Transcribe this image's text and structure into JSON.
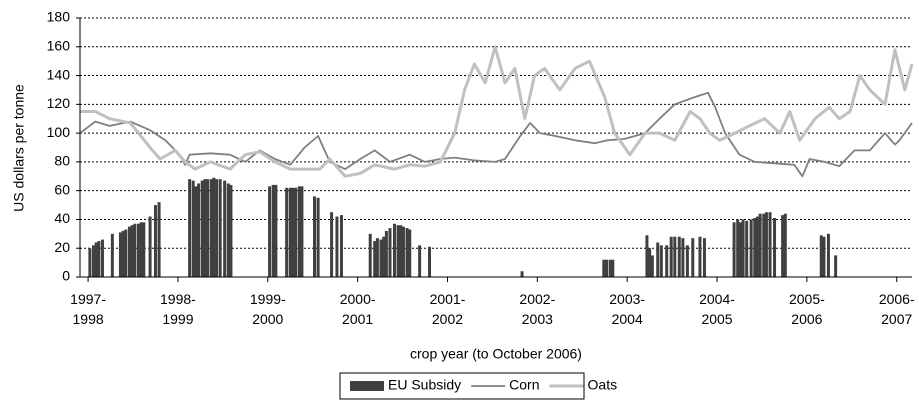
{
  "chart_data": {
    "type": "combo",
    "y_axis_label": "US dollars per tonne",
    "x_axis_label": "crop year (to October 2006)",
    "xlim": [
      1996.91,
      2006.17
    ],
    "xticks": [
      {
        "value": 1997,
        "label": "1997-1998"
      },
      {
        "value": 1998,
        "label": "1998-1999"
      },
      {
        "value": 1999,
        "label": "1999-2000"
      },
      {
        "value": 2000,
        "label": "2000-2001"
      },
      {
        "value": 2001,
        "label": "2001-2002"
      },
      {
        "value": 2002,
        "label": "2002-2003"
      },
      {
        "value": 2003,
        "label": "2003-2004"
      },
      {
        "value": 2004,
        "label": "2004-2005"
      },
      {
        "value": 2005,
        "label": "2005-2006"
      },
      {
        "value": 2006,
        "label": "2006-2007"
      }
    ],
    "ylim": [
      0,
      180
    ],
    "yticks": [
      0,
      20,
      40,
      60,
      80,
      100,
      120,
      140,
      160,
      180
    ],
    "grid": true,
    "legend": "bottom",
    "series": [
      {
        "name": "EU Subsidy",
        "type": "bar",
        "color": "#404040",
        "x": [
          1997.02,
          1997.06,
          1997.09,
          1997.12,
          1997.16,
          1997.27,
          1997.36,
          1997.39,
          1997.42,
          1997.46,
          1997.49,
          1997.52,
          1997.56,
          1997.59,
          1997.62,
          1997.69,
          1997.75,
          1997.79,
          1998.13,
          1998.17,
          1998.2,
          1998.23,
          1998.27,
          1998.3,
          1998.33,
          1998.37,
          1998.4,
          1998.43,
          1998.47,
          1998.52,
          1998.56,
          1998.59,
          1999.02,
          1999.06,
          1999.09,
          1999.21,
          1999.25,
          1999.28,
          1999.31,
          1999.35,
          1999.38,
          1999.52,
          1999.56,
          1999.71,
          1999.77,
          1999.82,
          2000.14,
          2000.19,
          2000.22,
          2000.26,
          2000.29,
          2000.32,
          2000.36,
          2000.41,
          2000.45,
          2000.48,
          2000.51,
          2000.55,
          2000.58,
          2000.69,
          2000.8,
          2001.83,
          2002.74,
          2002.77,
          2002.81,
          2002.84,
          2003.22,
          2003.25,
          2003.28,
          2003.34,
          2003.38,
          2003.44,
          2003.49,
          2003.53,
          2003.58,
          2003.62,
          2003.67,
          2003.73,
          2003.81,
          2003.86,
          2004.19,
          2004.23,
          2004.26,
          2004.29,
          2004.33,
          2004.38,
          2004.42,
          2004.45,
          2004.48,
          2004.52,
          2004.55,
          2004.59,
          2004.64,
          2004.73,
          2004.76,
          2005.16,
          2005.19,
          2005.24,
          2005.32
        ],
        "values": [
          20,
          22,
          24,
          25,
          26,
          30,
          31,
          32,
          33,
          35,
          36,
          37,
          37,
          38,
          38,
          42,
          50,
          52,
          68,
          67,
          63,
          65,
          67,
          68,
          68,
          68,
          69,
          68,
          68,
          67,
          65,
          64,
          63,
          64,
          64,
          62,
          62,
          62,
          62,
          63,
          63,
          56,
          55,
          45,
          42,
          43,
          30,
          25,
          27,
          26,
          28,
          32,
          34,
          37,
          36,
          36,
          35,
          34,
          33,
          22,
          21,
          4,
          12,
          12,
          12,
          12,
          29,
          20,
          15,
          24,
          22,
          22,
          28,
          28,
          28,
          27,
          22,
          27,
          28,
          27,
          38,
          40,
          38,
          40,
          39,
          40,
          41,
          42,
          44,
          44,
          45,
          45,
          41,
          43,
          44,
          29,
          28,
          30,
          15
        ]
      },
      {
        "name": "Corn",
        "type": "line",
        "color": "#808080",
        "x": [
          1996.91,
          1997.08,
          1997.24,
          1997.47,
          1997.69,
          1997.86,
          1998.02,
          1998.08,
          1998.13,
          1998.36,
          1998.58,
          1998.75,
          1998.91,
          1999.08,
          1999.25,
          1999.41,
          1999.56,
          1999.69,
          1999.86,
          2000.03,
          2000.19,
          2000.36,
          2000.58,
          2000.75,
          2000.92,
          2001.08,
          2001.3,
          2001.53,
          2001.64,
          2001.81,
          2001.92,
          2002.03,
          2002.2,
          2002.42,
          2002.64,
          2002.78,
          2002.97,
          2003.2,
          2003.36,
          2003.53,
          2003.75,
          2003.9,
          2003.98,
          2004.09,
          2004.25,
          2004.42,
          2004.64,
          2004.86,
          2004.95,
          2005.03,
          2005.2,
          2005.36,
          2005.53,
          2005.7,
          2005.87,
          2005.98,
          2006.03,
          2006.17
        ],
        "values": [
          100,
          108,
          105,
          108,
          102,
          95,
          85,
          78,
          85,
          86,
          85,
          80,
          88,
          82,
          78,
          90,
          98,
          80,
          75,
          82,
          88,
          80,
          85,
          80,
          82,
          83,
          81,
          80,
          82,
          98,
          107,
          100,
          98,
          95,
          93,
          95,
          96,
          100,
          110,
          120,
          125,
          128,
          118,
          100,
          85,
          80,
          79,
          78,
          70,
          82,
          80,
          77,
          88,
          88,
          100,
          92,
          95,
          107
        ]
      },
      {
        "name": "Oats",
        "type": "line",
        "color": "#c0c0c0",
        "x": [
          1996.91,
          1997.08,
          1997.24,
          1997.47,
          1997.69,
          1997.8,
          1997.97,
          1998.08,
          1998.19,
          1998.36,
          1998.58,
          1998.75,
          1998.91,
          1999.08,
          1999.25,
          1999.41,
          1999.58,
          1999.69,
          1999.86,
          2000.03,
          2000.19,
          2000.41,
          2000.58,
          2000.75,
          2000.92,
          2001.08,
          2001.19,
          2001.3,
          2001.42,
          2001.53,
          2001.64,
          2001.75,
          2001.86,
          2001.97,
          2002.08,
          2002.25,
          2002.42,
          2002.58,
          2002.75,
          2002.86,
          2003.03,
          2003.2,
          2003.36,
          2003.53,
          2003.7,
          2003.81,
          2003.92,
          2004.03,
          2004.2,
          2004.36,
          2004.53,
          2004.7,
          2004.81,
          2004.92,
          2005.09,
          2005.25,
          2005.36,
          2005.48,
          2005.59,
          2005.7,
          2005.87,
          2005.98,
          2006.09,
          2006.17
        ],
        "values": [
          115,
          115,
          110,
          107,
          90,
          82,
          88,
          80,
          75,
          80,
          75,
          85,
          87,
          80,
          75,
          75,
          75,
          82,
          70,
          72,
          78,
          75,
          78,
          77,
          80,
          100,
          130,
          148,
          135,
          160,
          135,
          145,
          110,
          140,
          145,
          130,
          145,
          150,
          125,
          100,
          85,
          100,
          100,
          95,
          115,
          110,
          100,
          95,
          100,
          105,
          110,
          100,
          115,
          95,
          110,
          118,
          110,
          115,
          140,
          130,
          120,
          158,
          130,
          148
        ]
      }
    ]
  }
}
